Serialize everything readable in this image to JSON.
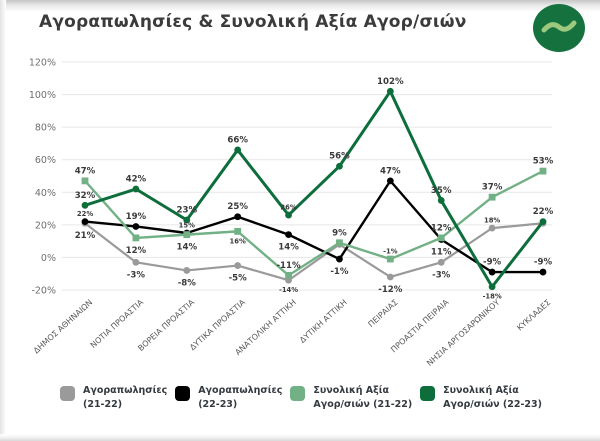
{
  "header": {
    "title": "Αγοραπωλησίες & Συνολική Αξία Αγορ/σιών",
    "logo": "green-wave-logo"
  },
  "colors": {
    "grid": "#e7e7e7",
    "axis_text": "#6f6f6f",
    "category_text": "#595959",
    "data_label": "#3a3a3a",
    "logo_circle": "#15713e",
    "logo_wave": "#9cc97e"
  },
  "chart_data": {
    "type": "line",
    "title": "Αγοραπωλησίες & Συνολική Αξία Αγορ/σιών",
    "grid": true,
    "legend_position": "bottom",
    "ylim": [
      -20,
      120
    ],
    "y_ticks": [
      "120%",
      "100%",
      "80%",
      "60%",
      "40%",
      "20%",
      "0%",
      "-20%"
    ],
    "categories": [
      "ΔΗΜΟΣ ΑΘΗΝΑΙΩΝ",
      "ΝΟΤΙΑ ΠΡΟΑΣΤΙΑ",
      "ΒΟΡΕΙΑ ΠΡΟΑΣΤΙΑ",
      "ΔΥΤΙΚΑ ΠΡΟΑΣΤΙΑ",
      "ΑΝΑΤΟΛΙΚΗ ΑΤΤΙΚΗ",
      "ΔΥΤΙΚΗ ΑΤΤΙΚΗ",
      "ΠΕΙΡΑΙΑΣ",
      "ΠΡΟΑΣΤΙΑ ΠΕΙΡΑΙΑ",
      "ΝΗΣΙΑ ΑΡΓΟΣΑΡΩΝΙΚΟΥ",
      "ΚΥΚΛΑΔΕΣ"
    ],
    "series": [
      {
        "name": "Αγοραπωλησίες (21-22)",
        "legend_lines": [
          "Αγοραπωλησίες",
          "(21-22)"
        ],
        "color": "#9a9a9a",
        "marker": "circle",
        "line_width": 2.2,
        "values": [
          21,
          -3,
          -8,
          -5,
          -14,
          8,
          -12,
          -3,
          18,
          21
        ],
        "labels": [
          "21%",
          "-3%",
          "-8%",
          "-5%",
          "-14%",
          "",
          "-12%",
          "-3%",
          "18%",
          ""
        ],
        "label_pos": [
          "below",
          "below",
          "below",
          "below",
          "below",
          "none",
          "below",
          "below",
          "above",
          "none"
        ],
        "label_size": [
          "n",
          "n",
          "n",
          "n",
          "s",
          "n",
          "n",
          "n",
          "s",
          "n"
        ]
      },
      {
        "name": "Αγοραπωλησίες (22-23)",
        "legend_lines": [
          "Αγοραπωλησίες",
          "(22-23)"
        ],
        "color": "#000000",
        "marker": "circle",
        "line_width": 2.4,
        "values": [
          22,
          19,
          15,
          25,
          14,
          -1,
          47,
          11,
          -9,
          -9
        ],
        "labels": [
          "22%",
          "19%",
          "15%",
          "25%",
          "14%",
          "-1%",
          "47%",
          "11%",
          "-9%",
          "-9%"
        ],
        "label_pos": [
          "above",
          "above",
          "above",
          "above",
          "below",
          "below",
          "above",
          "below",
          "above",
          "above"
        ],
        "label_size": [
          "s",
          "n",
          "s",
          "n",
          "n",
          "n",
          "n",
          "n",
          "n",
          "n"
        ]
      },
      {
        "name": "Συνολική Αξία Αγορ/σιών (21-22)",
        "legend_lines": [
          "Συνολική Αξία",
          "Αγορ/σιών (21-22)"
        ],
        "color": "#72b086",
        "marker": "square",
        "line_width": 2.4,
        "values": [
          47,
          12,
          14,
          16,
          -11,
          9,
          -1,
          12,
          37,
          53
        ],
        "labels": [
          "47%",
          "12%",
          "14%",
          "16%",
          "-11%",
          "9%",
          "-1%",
          "12%",
          "37%",
          "53%"
        ],
        "label_pos": [
          "above",
          "below",
          "below",
          "below",
          "above",
          "above",
          "above",
          "above",
          "above",
          "above"
        ],
        "label_size": [
          "n",
          "n",
          "n",
          "s",
          "n",
          "n",
          "s",
          "n",
          "n",
          "n"
        ]
      },
      {
        "name": "Συνολική Αξία Αγορ/σιών (22-23)",
        "legend_lines": [
          "Συνολική Αξία",
          "Αγορ/σιών (22-23)"
        ],
        "color": "#0d6e3c",
        "marker": "circle",
        "line_width": 3,
        "values": [
          32,
          42,
          23,
          66,
          26,
          56,
          102,
          35,
          -18,
          22
        ],
        "labels": [
          "32%",
          "42%",
          "23%",
          "66%",
          "26%",
          "56%",
          "102%",
          "35%",
          "-18%",
          "22%"
        ],
        "label_pos": [
          "above",
          "above",
          "above",
          "above",
          "above",
          "above",
          "above",
          "above",
          "below",
          "above"
        ],
        "label_size": [
          "n",
          "n",
          "n",
          "n",
          "s",
          "n",
          "n",
          "n",
          "s",
          "n"
        ]
      }
    ]
  }
}
